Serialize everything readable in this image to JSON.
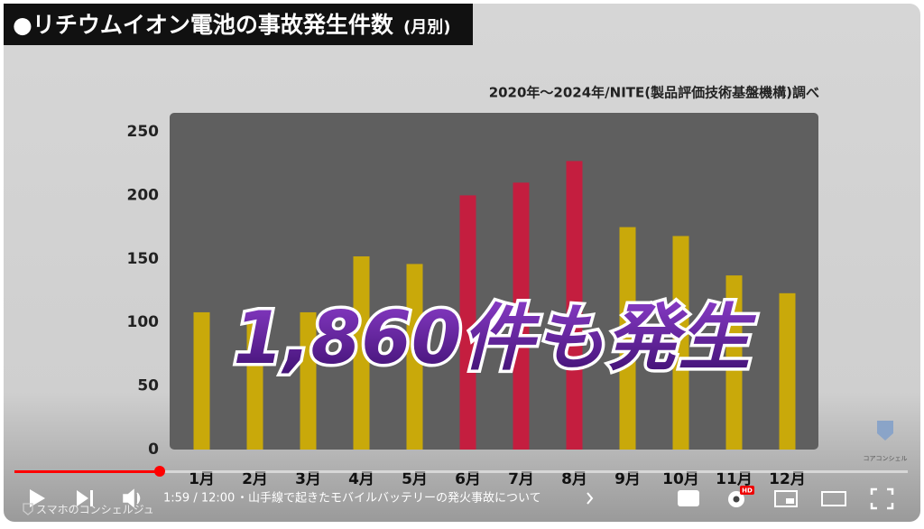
{
  "chart_data": {
    "type": "bar",
    "title": "●リチウムイオン電池の事故発生件数",
    "title_suffix": "(月別)",
    "subtitle": "2020年～2024年/NITE(製品評価技術基盤機構)調べ",
    "annotation": "1,860件も発生",
    "categories": [
      "1月",
      "2月",
      "3月",
      "4月",
      "5月",
      "6月",
      "7月",
      "8月",
      "9月",
      "10月",
      "11月",
      "12月"
    ],
    "values": [
      108,
      106,
      108,
      152,
      146,
      200,
      210,
      227,
      175,
      168,
      137,
      123
    ],
    "colors": [
      "#c9a90a",
      "#c9a90a",
      "#c9a90a",
      "#c9a90a",
      "#c9a90a",
      "#c41e3f",
      "#c41e3f",
      "#c41e3f",
      "#c9a90a",
      "#c9a90a",
      "#c9a90a",
      "#c9a90a"
    ],
    "ylim": [
      0,
      250
    ],
    "yticks": [
      0,
      50,
      100,
      150,
      200,
      250
    ],
    "grid": false
  },
  "player": {
    "time": "1:59 / 12:00",
    "chapter": "・山手線で起きたモバイルバッテリーの発火事故について",
    "channel_watermark": "スマホのコンシェルジュ",
    "logo_text": "コアコンシェル",
    "hd_badge": "HD"
  }
}
